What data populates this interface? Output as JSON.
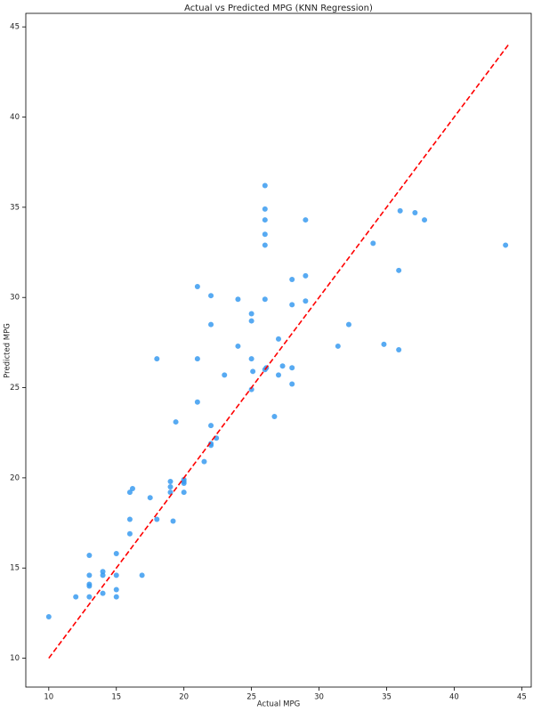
{
  "chart_data": {
    "type": "scatter",
    "title": "Actual vs Predicted MPG (KNN Regression)",
    "x_label": "Actual MPG",
    "y_label": "Predicted MPG",
    "xlim": [
      8.3,
      45.7
    ],
    "ylim": [
      8.4,
      45.75
    ],
    "xticks": [
      10,
      15,
      20,
      25,
      30,
      35,
      40,
      45
    ],
    "yticks": [
      10,
      15,
      20,
      25,
      30,
      35,
      40,
      45
    ],
    "grid": false,
    "series": [
      {
        "color": "#3a9bf0",
        "x": [
          10,
          12,
          13,
          13,
          13,
          13,
          13,
          14,
          14,
          14,
          15,
          15,
          15,
          15,
          16,
          16,
          16,
          16.2,
          16.9,
          17.5,
          18,
          18,
          19,
          19,
          19,
          19.2,
          19.4,
          20,
          20,
          20,
          20,
          21,
          21,
          21,
          21.5,
          22,
          22,
          22,
          22,
          22,
          22.4,
          23,
          24,
          24,
          25,
          25,
          25,
          25.1,
          25,
          26,
          26,
          26,
          26,
          26,
          26,
          26,
          26.1,
          26.7,
          27,
          27,
          27.3,
          28,
          28,
          28,
          28,
          29,
          29,
          29,
          31.4,
          32.2,
          34,
          34.8,
          35.9,
          35.9,
          36,
          37.1,
          37.8,
          43.8
        ],
        "values": [
          12.3,
          13.4,
          15.7,
          14.6,
          14.1,
          14.0,
          13.4,
          14.8,
          14.6,
          13.6,
          15.8,
          14.6,
          13.8,
          13.4,
          16.9,
          17.7,
          19.2,
          19.4,
          14.6,
          18.9,
          17.7,
          26.6,
          19.8,
          19.5,
          19.2,
          17.6,
          23.1,
          19.8,
          19.7,
          19.2,
          19.9,
          30.6,
          26.6,
          24.2,
          20.9,
          30.1,
          28.5,
          22.9,
          21.9,
          21.8,
          22.2,
          25.7,
          29.9,
          27.3,
          29.1,
          28.7,
          26.6,
          25.9,
          24.9,
          36.2,
          34.9,
          34.3,
          33.5,
          32.9,
          29.9,
          26.0,
          26.1,
          23.4,
          27.7,
          25.7,
          26.2,
          31.0,
          29.6,
          26.1,
          25.2,
          34.3,
          31.2,
          29.8,
          27.3,
          28.5,
          33.0,
          27.4,
          27.1,
          31.5,
          34.8,
          34.7,
          34.3,
          32.9
        ]
      }
    ],
    "reference_line": {
      "color": "#ff0000",
      "x": [
        10,
        44
      ],
      "values": [
        10,
        44
      ]
    }
  }
}
